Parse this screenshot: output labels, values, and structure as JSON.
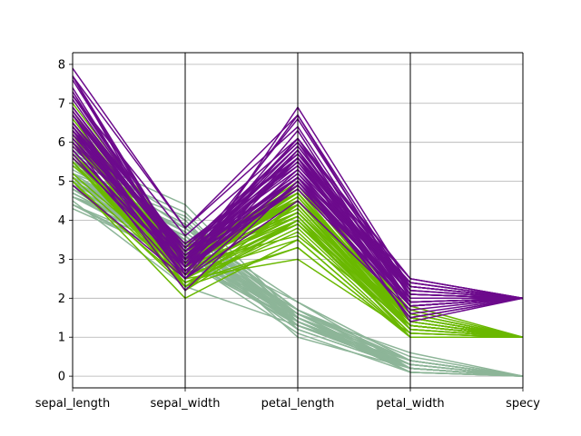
{
  "chart_data": {
    "type": "parallel-coordinates",
    "title": "",
    "dimensions": [
      "sepal_length",
      "sepal_width",
      "petal_length",
      "petal_width",
      "specy"
    ],
    "ylim": [
      -0.3,
      8.3
    ],
    "yticks": [
      0,
      1,
      2,
      3,
      4,
      5,
      6,
      7,
      8
    ],
    "grid": true,
    "legend": "none",
    "classes": [
      {
        "class_value": 0,
        "color": "#8db598"
      },
      {
        "class_value": 1,
        "color": "#6ab800"
      },
      {
        "class_value": 2,
        "color": "#6c0a8c"
      }
    ],
    "records": [
      [
        5.1,
        3.5,
        1.4,
        0.2,
        0
      ],
      [
        4.9,
        3.0,
        1.4,
        0.2,
        0
      ],
      [
        4.7,
        3.2,
        1.3,
        0.2,
        0
      ],
      [
        4.6,
        3.1,
        1.5,
        0.2,
        0
      ],
      [
        5.0,
        3.6,
        1.4,
        0.2,
        0
      ],
      [
        5.4,
        3.9,
        1.7,
        0.4,
        0
      ],
      [
        4.6,
        3.4,
        1.4,
        0.3,
        0
      ],
      [
        5.0,
        3.4,
        1.5,
        0.2,
        0
      ],
      [
        4.4,
        2.9,
        1.4,
        0.2,
        0
      ],
      [
        4.9,
        3.1,
        1.5,
        0.1,
        0
      ],
      [
        5.4,
        3.7,
        1.5,
        0.2,
        0
      ],
      [
        4.8,
        3.4,
        1.6,
        0.2,
        0
      ],
      [
        4.8,
        3.0,
        1.4,
        0.1,
        0
      ],
      [
        4.3,
        3.0,
        1.1,
        0.1,
        0
      ],
      [
        5.8,
        4.0,
        1.2,
        0.2,
        0
      ],
      [
        5.7,
        4.4,
        1.5,
        0.4,
        0
      ],
      [
        5.4,
        3.9,
        1.3,
        0.4,
        0
      ],
      [
        5.1,
        3.5,
        1.4,
        0.3,
        0
      ],
      [
        5.7,
        3.8,
        1.7,
        0.3,
        0
      ],
      [
        5.1,
        3.8,
        1.5,
        0.3,
        0
      ],
      [
        5.4,
        3.4,
        1.7,
        0.2,
        0
      ],
      [
        5.1,
        3.7,
        1.5,
        0.4,
        0
      ],
      [
        4.6,
        3.6,
        1.0,
        0.2,
        0
      ],
      [
        5.1,
        3.3,
        1.7,
        0.5,
        0
      ],
      [
        4.8,
        3.4,
        1.9,
        0.2,
        0
      ],
      [
        5.0,
        3.0,
        1.6,
        0.2,
        0
      ],
      [
        5.0,
        3.4,
        1.6,
        0.4,
        0
      ],
      [
        5.2,
        3.5,
        1.5,
        0.2,
        0
      ],
      [
        5.2,
        3.4,
        1.4,
        0.2,
        0
      ],
      [
        4.7,
        3.2,
        1.6,
        0.2,
        0
      ],
      [
        4.8,
        3.1,
        1.6,
        0.2,
        0
      ],
      [
        5.4,
        3.4,
        1.5,
        0.4,
        0
      ],
      [
        5.2,
        4.1,
        1.5,
        0.1,
        0
      ],
      [
        5.5,
        4.2,
        1.4,
        0.2,
        0
      ],
      [
        4.9,
        3.1,
        1.5,
        0.2,
        0
      ],
      [
        5.0,
        3.2,
        1.2,
        0.2,
        0
      ],
      [
        5.5,
        3.5,
        1.3,
        0.2,
        0
      ],
      [
        4.9,
        3.6,
        1.4,
        0.1,
        0
      ],
      [
        4.4,
        3.0,
        1.3,
        0.2,
        0
      ],
      [
        5.1,
        3.4,
        1.5,
        0.2,
        0
      ],
      [
        5.0,
        3.5,
        1.3,
        0.3,
        0
      ],
      [
        4.5,
        2.3,
        1.3,
        0.3,
        0
      ],
      [
        4.4,
        3.2,
        1.3,
        0.2,
        0
      ],
      [
        5.0,
        3.5,
        1.6,
        0.6,
        0
      ],
      [
        5.1,
        3.8,
        1.9,
        0.4,
        0
      ],
      [
        4.8,
        3.0,
        1.4,
        0.3,
        0
      ],
      [
        5.1,
        3.8,
        1.6,
        0.2,
        0
      ],
      [
        4.6,
        3.2,
        1.4,
        0.2,
        0
      ],
      [
        5.3,
        3.7,
        1.5,
        0.2,
        0
      ],
      [
        5.0,
        3.3,
        1.4,
        0.2,
        0
      ],
      [
        7.0,
        3.2,
        4.7,
        1.4,
        1
      ],
      [
        6.4,
        3.2,
        4.5,
        1.5,
        1
      ],
      [
        6.9,
        3.1,
        4.9,
        1.5,
        1
      ],
      [
        5.5,
        2.3,
        4.0,
        1.3,
        1
      ],
      [
        6.5,
        2.8,
        4.6,
        1.5,
        1
      ],
      [
        5.7,
        2.8,
        4.5,
        1.3,
        1
      ],
      [
        6.3,
        3.3,
        4.7,
        1.6,
        1
      ],
      [
        4.9,
        2.4,
        3.3,
        1.0,
        1
      ],
      [
        6.6,
        2.9,
        4.6,
        1.3,
        1
      ],
      [
        5.2,
        2.7,
        3.9,
        1.4,
        1
      ],
      [
        5.0,
        2.0,
        3.5,
        1.0,
        1
      ],
      [
        5.9,
        3.0,
        4.2,
        1.5,
        1
      ],
      [
        6.0,
        2.2,
        4.0,
        1.0,
        1
      ],
      [
        6.1,
        2.9,
        4.7,
        1.4,
        1
      ],
      [
        5.6,
        2.9,
        3.6,
        1.3,
        1
      ],
      [
        6.7,
        3.1,
        4.4,
        1.4,
        1
      ],
      [
        5.6,
        3.0,
        4.5,
        1.5,
        1
      ],
      [
        5.8,
        2.7,
        4.1,
        1.0,
        1
      ],
      [
        6.2,
        2.2,
        4.5,
        1.5,
        1
      ],
      [
        5.6,
        2.5,
        3.9,
        1.1,
        1
      ],
      [
        5.9,
        3.2,
        4.8,
        1.8,
        1
      ],
      [
        6.1,
        2.8,
        4.0,
        1.3,
        1
      ],
      [
        6.3,
        2.5,
        4.9,
        1.5,
        1
      ],
      [
        6.1,
        2.8,
        4.7,
        1.2,
        1
      ],
      [
        6.4,
        2.9,
        4.3,
        1.3,
        1
      ],
      [
        6.6,
        3.0,
        4.4,
        1.4,
        1
      ],
      [
        6.8,
        2.8,
        4.8,
        1.4,
        1
      ],
      [
        6.7,
        3.0,
        5.0,
        1.7,
        1
      ],
      [
        6.0,
        2.9,
        4.5,
        1.5,
        1
      ],
      [
        5.7,
        2.6,
        3.5,
        1.0,
        1
      ],
      [
        5.5,
        2.4,
        3.8,
        1.1,
        1
      ],
      [
        5.5,
        2.4,
        3.7,
        1.0,
        1
      ],
      [
        5.8,
        2.7,
        3.9,
        1.2,
        1
      ],
      [
        6.0,
        2.7,
        5.1,
        1.6,
        1
      ],
      [
        5.4,
        3.0,
        4.5,
        1.5,
        1
      ],
      [
        6.0,
        3.4,
        4.5,
        1.6,
        1
      ],
      [
        6.7,
        3.1,
        4.7,
        1.5,
        1
      ],
      [
        6.3,
        2.3,
        4.4,
        1.3,
        1
      ],
      [
        5.6,
        3.0,
        4.1,
        1.3,
        1
      ],
      [
        5.5,
        2.5,
        4.0,
        1.3,
        1
      ],
      [
        5.5,
        2.6,
        4.4,
        1.2,
        1
      ],
      [
        6.1,
        3.0,
        4.6,
        1.4,
        1
      ],
      [
        5.8,
        2.6,
        4.0,
        1.2,
        1
      ],
      [
        5.0,
        2.3,
        3.3,
        1.0,
        1
      ],
      [
        5.6,
        2.7,
        4.2,
        1.3,
        1
      ],
      [
        5.7,
        3.0,
        4.2,
        1.2,
        1
      ],
      [
        5.7,
        2.9,
        4.2,
        1.3,
        1
      ],
      [
        6.2,
        2.9,
        4.3,
        1.3,
        1
      ],
      [
        5.1,
        2.5,
        3.0,
        1.1,
        1
      ],
      [
        5.7,
        2.8,
        4.1,
        1.3,
        1
      ],
      [
        6.3,
        3.3,
        6.0,
        2.5,
        2
      ],
      [
        5.8,
        2.7,
        5.1,
        1.9,
        2
      ],
      [
        7.1,
        3.0,
        5.9,
        2.1,
        2
      ],
      [
        6.3,
        2.9,
        5.6,
        1.8,
        2
      ],
      [
        6.5,
        3.0,
        5.8,
        2.2,
        2
      ],
      [
        7.6,
        3.0,
        6.6,
        2.1,
        2
      ],
      [
        4.9,
        2.5,
        4.5,
        1.7,
        2
      ],
      [
        7.3,
        2.9,
        6.3,
        1.8,
        2
      ],
      [
        6.7,
        2.5,
        5.8,
        1.8,
        2
      ],
      [
        7.2,
        3.6,
        6.1,
        2.5,
        2
      ],
      [
        6.5,
        3.2,
        5.1,
        2.0,
        2
      ],
      [
        6.4,
        2.7,
        5.3,
        1.9,
        2
      ],
      [
        6.8,
        3.0,
        5.5,
        2.1,
        2
      ],
      [
        5.7,
        2.5,
        5.0,
        2.0,
        2
      ],
      [
        5.8,
        2.8,
        5.1,
        2.4,
        2
      ],
      [
        6.4,
        3.2,
        5.3,
        2.3,
        2
      ],
      [
        6.5,
        3.0,
        5.5,
        1.8,
        2
      ],
      [
        7.7,
        3.8,
        6.7,
        2.2,
        2
      ],
      [
        7.7,
        2.6,
        6.9,
        2.3,
        2
      ],
      [
        6.0,
        2.2,
        5.0,
        1.5,
        2
      ],
      [
        6.9,
        3.2,
        5.7,
        2.3,
        2
      ],
      [
        5.6,
        2.8,
        4.9,
        2.0,
        2
      ],
      [
        7.7,
        2.8,
        6.7,
        2.0,
        2
      ],
      [
        6.3,
        2.7,
        4.9,
        1.8,
        2
      ],
      [
        6.7,
        3.3,
        5.7,
        2.1,
        2
      ],
      [
        7.2,
        3.2,
        6.0,
        1.8,
        2
      ],
      [
        6.2,
        2.8,
        4.8,
        1.8,
        2
      ],
      [
        6.1,
        3.0,
        4.9,
        1.8,
        2
      ],
      [
        6.4,
        2.8,
        5.6,
        2.1,
        2
      ],
      [
        7.2,
        3.0,
        5.8,
        1.6,
        2
      ],
      [
        7.4,
        2.8,
        6.1,
        1.9,
        2
      ],
      [
        7.9,
        3.8,
        6.4,
        2.0,
        2
      ],
      [
        6.4,
        2.8,
        5.6,
        2.2,
        2
      ],
      [
        6.3,
        2.8,
        5.1,
        1.5,
        2
      ],
      [
        6.1,
        2.6,
        5.6,
        1.4,
        2
      ],
      [
        7.7,
        3.0,
        6.1,
        2.3,
        2
      ],
      [
        6.3,
        3.4,
        5.6,
        2.4,
        2
      ],
      [
        6.4,
        3.1,
        5.5,
        1.8,
        2
      ],
      [
        6.0,
        3.0,
        4.8,
        1.8,
        2
      ],
      [
        6.9,
        3.1,
        5.4,
        2.1,
        2
      ],
      [
        6.7,
        3.1,
        5.6,
        2.4,
        2
      ],
      [
        6.9,
        3.1,
        5.1,
        2.3,
        2
      ],
      [
        5.8,
        2.7,
        5.1,
        1.9,
        2
      ],
      [
        6.8,
        3.2,
        5.9,
        2.3,
        2
      ],
      [
        6.7,
        3.3,
        5.7,
        2.5,
        2
      ],
      [
        6.7,
        3.0,
        5.2,
        2.3,
        2
      ],
      [
        6.3,
        2.5,
        5.0,
        1.9,
        2
      ],
      [
        6.5,
        3.0,
        5.2,
        2.0,
        2
      ],
      [
        6.2,
        3.4,
        5.4,
        2.3,
        2
      ],
      [
        5.9,
        3.0,
        5.1,
        1.8,
        2
      ]
    ]
  }
}
